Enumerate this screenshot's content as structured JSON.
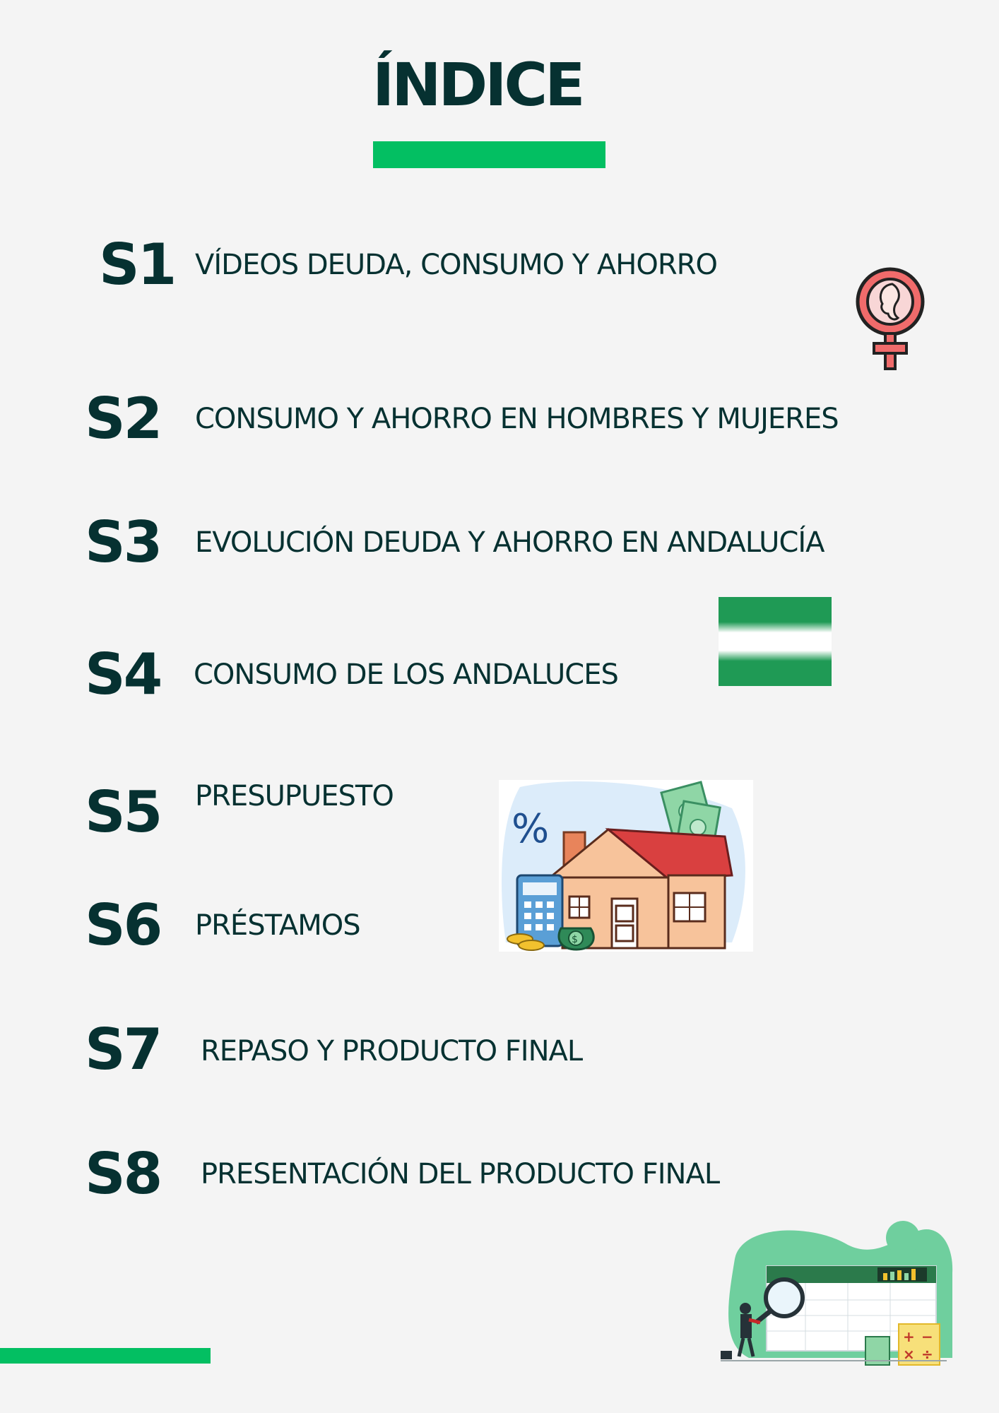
{
  "title": "ÍNDICE",
  "sessions": [
    {
      "code": "S1",
      "label": "VÍDEOS DEUDA, CONSUMO Y AHORRO"
    },
    {
      "code": "S2",
      "label": "CONSUMO Y AHORRO EN HOMBRES Y MUJERES"
    },
    {
      "code": "S3",
      "label": "EVOLUCIÓN DEUDA Y AHORRO EN ANDALUCÍA"
    },
    {
      "code": "S4",
      "label": "CONSUMO DE LOS ANDALUCES"
    },
    {
      "code": "S5",
      "label": "PRESUPUESTO"
    },
    {
      "code": "S6",
      "label": "PRÉSTAMOS"
    },
    {
      "code": "S7",
      "label": "REPASO Y PRODUCTO FINAL"
    },
    {
      "code": "S8",
      "label": "PRESENTACIÓN DEL PRODUCTO FINAL"
    }
  ],
  "illustrations": {
    "house_percent_symbol": "%",
    "calculator_symbols": [
      "+",
      "−",
      "×",
      "÷"
    ],
    "dollar_symbol": "$"
  },
  "colors": {
    "accent_green": "#03bf62",
    "text_dark": "#063131",
    "background": "#f4f4f4",
    "flag_green": "#1f9a55",
    "female_icon": "#f06b6b"
  },
  "icons": [
    "female-symbol-icon",
    "andalusia-flag-icon",
    "house-finance-icon",
    "spreadsheet-analysis-icon"
  ]
}
